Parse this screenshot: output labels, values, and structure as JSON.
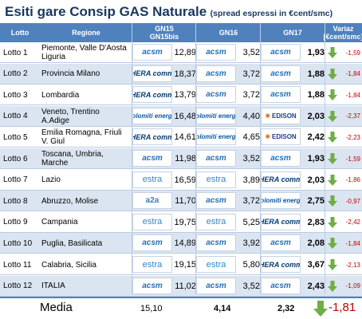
{
  "title": {
    "main": "Esiti gare Consip GAS Naturale",
    "sub": "(spread espressi in €cent/smc)"
  },
  "header": {
    "lotto": "Lotto",
    "regione": "Regione",
    "gn15": "GN15",
    "gn15bis": "GN15bis",
    "gn16": "GN16",
    "gn17": "GN17",
    "variaz": "Variaz",
    "variaz_unit": "[€cent/smc]"
  },
  "rows": [
    {
      "lotto": "Lotto 1",
      "regione": "Piemonte, Valle D'Aosta Liguria",
      "logo1": "acsm",
      "val1": "12,89",
      "logo2": "acsm",
      "val2": "3,52",
      "logo3": "acsm",
      "val3": "1,93",
      "variaz": "-1,59"
    },
    {
      "lotto": "Lotto 2",
      "regione": "Provincia Milano",
      "logo1": "HERA comm",
      "val1": "18,37",
      "logo2": "acsm",
      "val2": "3,72",
      "logo3": "acsm",
      "val3": "1,88",
      "variaz": "-1,84"
    },
    {
      "lotto": "Lotto 3",
      "regione": "Lombardia",
      "logo1": "HERA comm",
      "val1": "13,79",
      "logo2": "acsm",
      "val2": "3,72",
      "logo3": "acsm",
      "val3": "1,88",
      "variaz": "-1,84"
    },
    {
      "lotto": "Lotto 4",
      "regione": "Veneto, Trentino A.Adige",
      "logo1": "Dolomiti energia",
      "val1": "16,48",
      "logo2": "Dolomiti energia",
      "val2": "4,40",
      "logo3": "EDISON",
      "val3": "2,03",
      "variaz": "-2,37"
    },
    {
      "lotto": "Lotto 5",
      "regione": "Emilia Romagna, Friuli V. Giul",
      "logo1": "HERA comm",
      "val1": "14,61",
      "logo2": "Dolomiti energia",
      "val2": "4,65",
      "logo3": "EDISON",
      "val3": "2,42",
      "variaz": "-2,23"
    },
    {
      "lotto": "Lotto 6",
      "regione": "Toscana, Umbria, Marche",
      "logo1": "acsm",
      "val1": "11,98",
      "logo2": "acsm",
      "val2": "3,52",
      "logo3": "acsm",
      "val3": "1,93",
      "variaz": "-1,59"
    },
    {
      "lotto": "Lotto 7",
      "regione": "Lazio",
      "logo1": "estra",
      "val1": "16,59",
      "logo2": "estra",
      "val2": "3,89",
      "logo3": "HERA comm",
      "val3": "2,03",
      "variaz": "-1,86"
    },
    {
      "lotto": "Lotto 8",
      "regione": "Abruzzo, Molise",
      "logo1": "a2a",
      "val1": "11,70",
      "logo2": "acsm",
      "val2": "3,72",
      "logo3": "Dolomiti energia",
      "val3": "2,75",
      "variaz": "-0,97"
    },
    {
      "lotto": "Lotto 9",
      "regione": "Campania",
      "logo1": "estra",
      "val1": "19,75",
      "logo2": "estra",
      "val2": "5,25",
      "logo3": "HERA comm",
      "val3": "2,83",
      "variaz": "-2,42"
    },
    {
      "lotto": "Lotto 10",
      "regione": "Puglia, Basilicata",
      "logo1": "acsm",
      "val1": "14,89",
      "logo2": "acsm",
      "val2": "3,92",
      "logo3": "acsm",
      "val3": "2,08",
      "variaz": "-1,84"
    },
    {
      "lotto": "Lotto 11",
      "regione": "Calabria, Sicilia",
      "logo1": "estra",
      "val1": "19,15",
      "logo2": "estra",
      "val2": "5,80",
      "logo3": "HERA comm",
      "val3": "3,67",
      "variaz": "-2,13"
    },
    {
      "lotto": "Lotto 12",
      "regione": "ITALIA",
      "logo1": "acsm",
      "val1": "11,02",
      "logo2": "acsm",
      "val2": "3,52",
      "logo3": "acsm",
      "val3": "2,43",
      "variaz": "-1,09"
    }
  ],
  "media": {
    "label": "Media",
    "gn15": "15,10",
    "gn16": "4,14",
    "gn17": "2,32",
    "variaz": "-1,81"
  },
  "colors": {
    "header_bg": "#4f81bd",
    "row_alt": "#dbe5f1",
    "title": "#17375e",
    "down_arrow": "#70ad47",
    "negative": "#c00000"
  }
}
